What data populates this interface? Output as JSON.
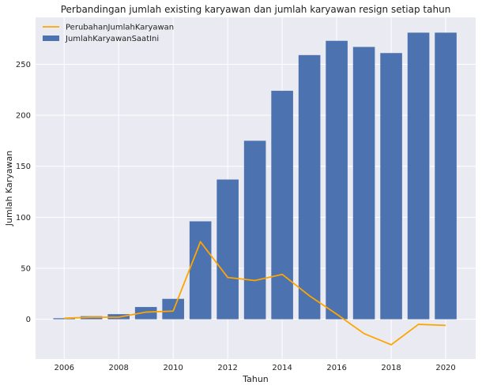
{
  "chart_data": {
    "type": "bar",
    "title": "Perbandingan jumlah existing karyawan dan jumlah karyawan resign setiap tahun",
    "xlabel": "Tahun",
    "ylabel": "Jumlah Karyawan",
    "x": [
      2006,
      2007,
      2008,
      2009,
      2010,
      2011,
      2012,
      2013,
      2014,
      2015,
      2016,
      2017,
      2018,
      2019,
      2020
    ],
    "xlim": [
      2004.95,
      2021.1
    ],
    "ylim": [
      -39,
      296
    ],
    "xticks": [
      2006,
      2008,
      2010,
      2012,
      2014,
      2016,
      2018,
      2020
    ],
    "yticks": [
      0,
      50,
      100,
      150,
      200,
      250
    ],
    "grid": true,
    "legend_position": "top-left",
    "series": [
      {
        "name": "PerubahanJumlahKaryawan",
        "type": "line",
        "color": "#FFA500",
        "values": [
          1,
          2,
          2,
          7,
          8,
          76,
          41,
          38,
          44,
          23,
          5,
          -14,
          -25,
          -5,
          -6
        ]
      },
      {
        "name": "JumlahKaryawanSaatIni",
        "type": "bar",
        "color": "#4C72B0",
        "values": [
          1,
          3,
          5,
          12,
          20,
          96,
          137,
          175,
          224,
          259,
          273,
          267,
          261,
          281,
          281
        ]
      }
    ]
  }
}
